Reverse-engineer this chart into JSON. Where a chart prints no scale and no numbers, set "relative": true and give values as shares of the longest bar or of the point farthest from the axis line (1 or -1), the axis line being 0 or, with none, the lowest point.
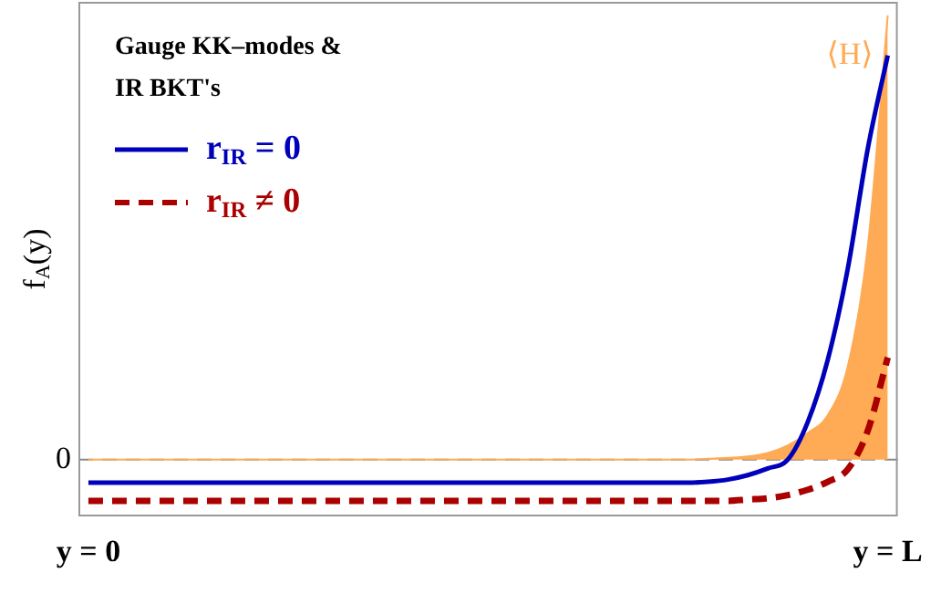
{
  "chart_data": {
    "type": "line",
    "relative": true,
    "legend_title": "Gauge KK–modes & IR BKT's",
    "ylabel": "f$_{A}$(y)",
    "legend": "top left",
    "marker": "none",
    "categories": [
      "y = 0",
      null,
      null,
      null,
      null,
      null,
      null,
      null,
      null,
      null,
      null,
      null,
      null,
      null,
      null,
      null,
      null,
      null,
      null,
      null,
      null,
      null,
      null,
      null,
      null,
      null,
      null,
      null,
      null,
      null,
      null,
      null,
      null,
      null,
      null,
      null,
      null,
      null,
      null,
      null,
      "y = L"
    ],
    "ref_lines": [
      {
        "axis": "y",
        "value": 0,
        "label": "0",
        "color": "#888888",
        "line_style": "dashed"
      }
    ],
    "series": [
      {
        "type": "area",
        "name": "⟨H⟩",
        "color": "#ffaa55",
        "values": [
          0,
          0,
          0,
          0,
          0,
          0,
          0,
          0,
          0,
          0,
          0,
          0,
          0,
          0,
          0,
          0,
          0,
          0,
          0,
          0,
          0,
          0,
          0,
          0,
          0,
          0,
          0,
          0,
          0,
          0,
          0,
          0.002,
          0.004,
          0.007,
          0.015,
          0.032,
          0.06,
          0.1,
          0.21,
          0.48,
          1
        ]
      },
      {
        "name": "r$_{IR}$ = 0",
        "color": "#0000bb",
        "line_style": "solid",
        "values": [
          -0.052,
          -0.052,
          -0.052,
          -0.052,
          -0.052,
          -0.052,
          -0.052,
          -0.052,
          -0.052,
          -0.052,
          -0.052,
          -0.052,
          -0.052,
          -0.052,
          -0.052,
          -0.052,
          -0.052,
          -0.052,
          -0.052,
          -0.052,
          -0.052,
          -0.052,
          -0.052,
          -0.052,
          -0.052,
          -0.052,
          -0.052,
          -0.052,
          -0.052,
          -0.052,
          -0.052,
          -0.05,
          -0.045,
          -0.035,
          -0.02,
          0,
          0.085,
          0.225,
          0.43,
          0.7,
          0.91
        ]
      },
      {
        "name": "r$_{IR}$ ≠ 0",
        "color": "#aa0000",
        "line_style": "dashed",
        "values": [
          -0.093,
          -0.093,
          -0.093,
          -0.093,
          -0.093,
          -0.093,
          -0.093,
          -0.093,
          -0.093,
          -0.093,
          -0.093,
          -0.093,
          -0.093,
          -0.093,
          -0.093,
          -0.093,
          -0.093,
          -0.093,
          -0.093,
          -0.093,
          -0.093,
          -0.093,
          -0.093,
          -0.093,
          -0.093,
          -0.093,
          -0.093,
          -0.093,
          -0.093,
          -0.093,
          -0.093,
          -0.093,
          -0.093,
          -0.09,
          -0.087,
          -0.08,
          -0.068,
          -0.05,
          -0.022,
          0.065,
          0.23
        ]
      }
    ]
  }
}
